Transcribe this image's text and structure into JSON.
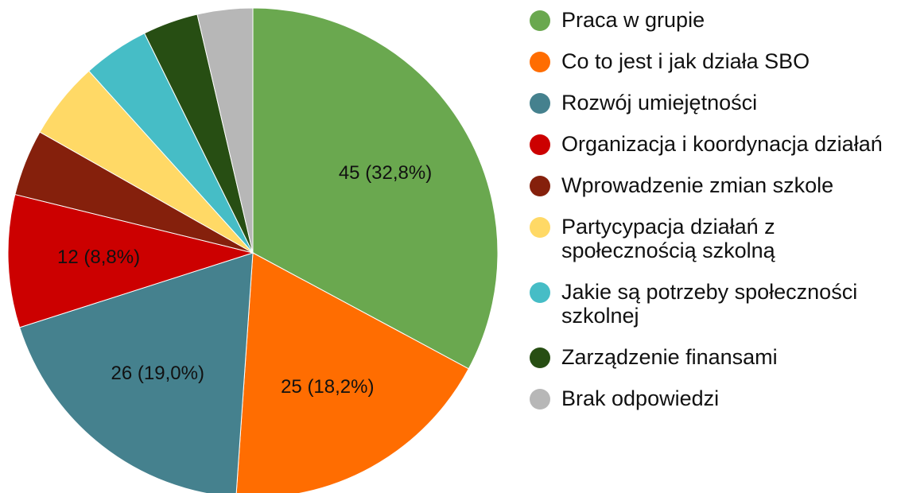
{
  "chart_data": {
    "type": "pie",
    "categories": [
      "Praca w grupie",
      "Co to jest i jak działa SBO",
      "Rozwój umiejętności",
      "Organizacja i koordynacja działań",
      "Wprowadzenie zmian szkole",
      "Partycypacja działań z społecznością szkolną",
      "Jakie są potrzeby społeczności szkolnej",
      "Zarządzenie finansami",
      "Brak odpowiedzi"
    ],
    "values": [
      45,
      25,
      26,
      12,
      6,
      7,
      6,
      5,
      5
    ],
    "value_labels": [
      "45 (32,8%)",
      "25 (18,2%)",
      "26 (19,0%)",
      "12 (8,8%)",
      null,
      null,
      null,
      null,
      null
    ],
    "colors": [
      "#6aa84f",
      "#ff6d01",
      "#45818e",
      "#cc0000",
      "#85200c",
      "#ffd966",
      "#46bdc6",
      "#274e13",
      "#b7b7b7"
    ],
    "legend": "right"
  }
}
